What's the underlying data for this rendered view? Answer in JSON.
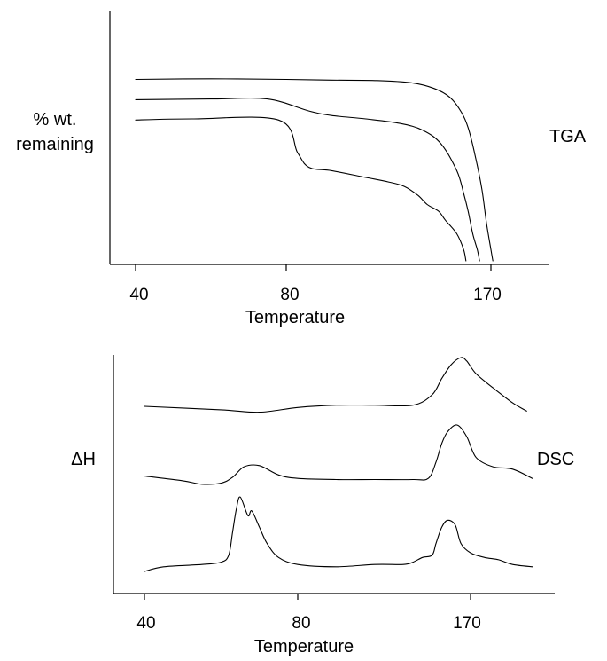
{
  "chart_data": [
    {
      "type": "line",
      "title": "",
      "chart_label": "TGA",
      "ylabel_lines": [
        "% wt.",
        "remaining"
      ],
      "xlabel": "Temperature",
      "x_ticks": [
        40,
        80,
        170
      ],
      "xlim": [
        35,
        200
      ],
      "ylim": [
        0,
        100
      ],
      "yticks_shown": false,
      "grid": false,
      "series": [
        {
          "x": [
            40,
            60,
            80,
            100,
            120,
            135,
            145,
            152,
            157,
            160,
            163,
            166,
            168,
            170,
            171
          ],
          "y": [
            80.5,
            80.8,
            80.5,
            80.2,
            80,
            79,
            76.5,
            72.5,
            66,
            59,
            47,
            32,
            17,
            5,
            0
          ]
        },
        {
          "x": [
            40,
            60,
            75,
            90,
            100,
            115,
            130,
            140,
            148,
            155,
            158,
            160,
            162,
            164,
            165
          ],
          "y": [
            71.5,
            71.8,
            71.8,
            66.5,
            64.5,
            63,
            61,
            58,
            52,
            40,
            30,
            22,
            12,
            5,
            0
          ]
        },
        {
          "x": [
            40,
            55,
            78,
            85,
            90,
            100,
            115,
            125,
            132,
            138,
            142,
            147,
            150,
            155,
            158,
            159
          ],
          "y": [
            62.5,
            63,
            62.5,
            48,
            41.5,
            40,
            37,
            35,
            33,
            29,
            25,
            22,
            18,
            12,
            5,
            0
          ]
        }
      ]
    },
    {
      "type": "line",
      "title": "",
      "chart_label": "DSC",
      "ylabel": "ΔH",
      "xlabel": "Temperature",
      "x_ticks": [
        40,
        80,
        170
      ],
      "xlim": [
        33,
        200
      ],
      "ylim": [
        0,
        100
      ],
      "yticks_shown": false,
      "grid": false,
      "series": [
        {
          "x": [
            40,
            60,
            70,
            80,
            100,
            120,
            140,
            150,
            155,
            160,
            165,
            168,
            172,
            178,
            185,
            190
          ],
          "y": [
            79,
            77.5,
            76.5,
            78.5,
            79.5,
            79.5,
            79.5,
            84,
            91,
            97,
            100,
            98.5,
            93,
            87,
            80.5,
            77
          ]
        },
        {
          "x": [
            40,
            50,
            55,
            60,
            63,
            66,
            70,
            75,
            80,
            100,
            120,
            140,
            148,
            152,
            155,
            158,
            163,
            168,
            172,
            178,
            185,
            192
          ],
          "y": [
            49,
            47,
            45.5,
            46,
            48.5,
            53,
            53.5,
            49.5,
            48,
            47.5,
            47.5,
            47.5,
            48,
            55,
            63,
            68,
            71,
            66,
            57,
            53,
            52,
            48
          ]
        },
        {
          "x": [
            40,
            45,
            55,
            60,
            62,
            63,
            64,
            65,
            67,
            68,
            70,
            72,
            75,
            80,
            100,
            120,
            135,
            140,
            145,
            150,
            152,
            155,
            158,
            162,
            165,
            170,
            175,
            180,
            185,
            192
          ],
          "y": [
            8,
            10,
            11,
            12,
            15,
            25,
            35,
            40,
            32,
            34,
            27,
            20,
            14,
            11,
            10,
            11,
            11,
            12,
            14,
            15,
            20,
            27,
            30,
            28,
            20,
            16,
            14,
            13,
            11,
            10
          ]
        }
      ]
    }
  ]
}
